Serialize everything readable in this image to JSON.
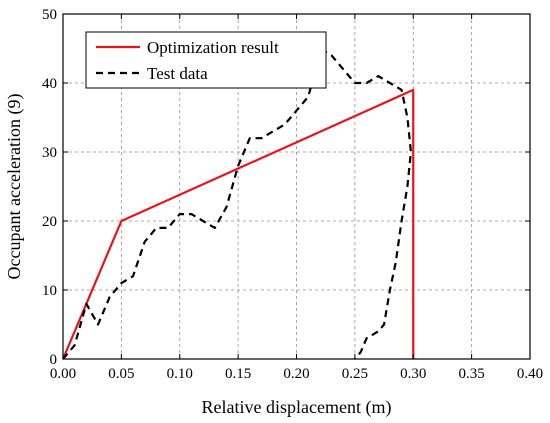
{
  "chart_data": {
    "type": "line",
    "title": "",
    "xlabel": "Relative displacement (m)",
    "ylabel": "Occupant acceleration (9)",
    "xlim": [
      0,
      0.4
    ],
    "ylim": [
      0,
      50
    ],
    "xticks": [
      "0.00",
      "0.05",
      "0.10",
      "0.15",
      "0.20",
      "0.25",
      "0.30",
      "0.35",
      "0.40"
    ],
    "yticks": [
      "0",
      "10",
      "20",
      "30",
      "40",
      "50"
    ],
    "grid": true,
    "legend_position": "top-left",
    "series": [
      {
        "name": "Optimization result",
        "style": "solid",
        "color": "#e8141c",
        "x": [
          0.0,
          0.05,
          0.3,
          0.3
        ],
        "y": [
          0,
          20,
          39,
          0
        ]
      },
      {
        "name": "Test data",
        "style": "dashed",
        "color": "#000000",
        "x": [
          0.0,
          0.01,
          0.02,
          0.03,
          0.04,
          0.05,
          0.06,
          0.07,
          0.08,
          0.09,
          0.1,
          0.11,
          0.12,
          0.13,
          0.14,
          0.15,
          0.16,
          0.17,
          0.18,
          0.19,
          0.2,
          0.21,
          0.215,
          0.22,
          0.23,
          0.24,
          0.25,
          0.26,
          0.27,
          0.28,
          0.29,
          0.295,
          0.298,
          0.295,
          0.29,
          0.285,
          0.28,
          0.275,
          0.27,
          0.26,
          0.255,
          0.25
        ],
        "y": [
          0,
          2,
          8,
          5,
          9,
          11,
          12,
          17,
          19,
          19,
          21,
          21,
          20,
          19,
          22,
          28,
          32,
          32,
          33,
          34,
          36,
          38,
          41,
          45,
          44,
          42,
          40,
          40,
          41,
          40,
          39,
          35,
          30,
          25,
          20,
          14,
          10,
          5,
          4,
          3,
          1,
          0
        ]
      }
    ]
  }
}
